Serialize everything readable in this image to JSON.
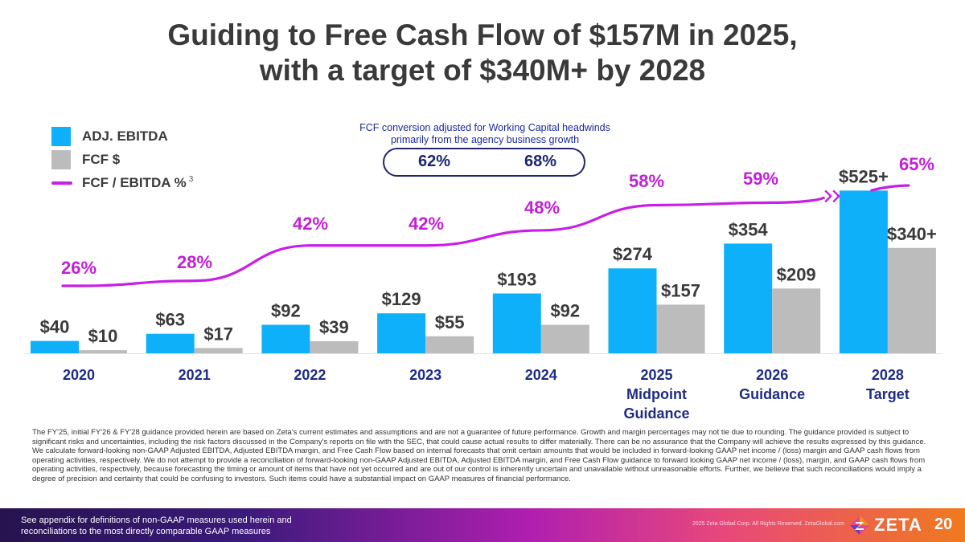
{
  "title": {
    "line1": "Guiding to Free Cash Flow of $157M in 2025,",
    "line2": "with a target of $340M+ by 2028"
  },
  "legend": {
    "ebitda": "ADJ. EBITDA",
    "fcf": "FCF $",
    "ratio": "FCF / EBITDA %",
    "ratio_superscript": "3"
  },
  "fcf_note": {
    "line1": "FCF conversion adjusted for Working Capital headwinds",
    "line2": "primarily from the agency business growth",
    "values": [
      "62%",
      "68%"
    ]
  },
  "colors": {
    "ebitda": "#0fb0fa",
    "fcf": "#bcbcbc",
    "ratio_line": "#c81ee8",
    "axis_label": "#1e2c86",
    "value_label": "#3a3a3a",
    "ratio_label": "#c21fd6"
  },
  "chart_data": {
    "type": "bar",
    "categories": [
      [
        "2020"
      ],
      [
        "2021"
      ],
      [
        "2022"
      ],
      [
        "2023"
      ],
      [
        "2024"
      ],
      [
        "2025",
        "Midpoint",
        "Guidance"
      ],
      [
        "2026",
        "Guidance"
      ],
      [
        "2028",
        "Target"
      ]
    ],
    "series": [
      {
        "name": "ADJ. EBITDA",
        "values": [
          40,
          63,
          92,
          129,
          193,
          274,
          354,
          525
        ],
        "labels": [
          "$40",
          "$63",
          "$92",
          "$129",
          "$193",
          "$274",
          "$354",
          "$525+"
        ]
      },
      {
        "name": "FCF $",
        "values": [
          10,
          17,
          39,
          55,
          92,
          157,
          209,
          340
        ],
        "labels": [
          "$10",
          "$17",
          "$39",
          "$55",
          "$92",
          "$157",
          "$209",
          "$340+"
        ]
      },
      {
        "name": "FCF / EBITDA %",
        "type": "line",
        "values": [
          26,
          28,
          42,
          42,
          48,
          58,
          59,
          65
        ],
        "labels": [
          "26%",
          "28%",
          "42%",
          "42%",
          "48%",
          "58%",
          "59%",
          "65%"
        ]
      }
    ],
    "axis_break_between": [
      "2026",
      "2028"
    ],
    "grid": false,
    "legend_position": "top-left"
  },
  "footnote": {
    "paragraph1": "The FY'25, initial FY'26 & FY'28 guidance provided herein are based on Zeta's current estimates and assumptions and are not a guarantee of future performance. Growth and margin percentages may not tie due to rounding. The guidance provided is subject to significant risks and uncertainties, including the risk factors discussed in the Company's reports on file with the SEC, that could cause actual results to differ materially. There can be no assurance that the Company will achieve the results expressed by this guidance.",
    "paragraph2": "We calculate forward-looking non-GAAP Adjusted EBITDA, Adjusted EBITDA margin, and Free Cash Flow based on internal forecasts that omit certain amounts that would be included in forward-looking GAAP net income / (loss) margin and GAAP cash flows from operating activities, respectively. We do not attempt to provide a reconciliation of forward-looking non-GAAP Adjusted EBITDA, Adjusted EBITDA margin, and Free Cash Flow guidance to forward looking GAAP net income / (loss), margin, and GAAP cash flows from operating activities, respectively, because forecasting the timing or amount of items that have not yet occurred and are out of our control is inherently uncertain and unavailable without unreasonable efforts. Further, we believe that such reconciliations would imply a degree of precision and certainty that could be confusing to investors. Such items could have a substantial impact on GAAP measures of financial performance."
  },
  "footer": {
    "note_line1": "See appendix for definitions of non-GAAP measures used herein and",
    "note_line2": "reconciliations to the most directly comparable GAAP measures",
    "copyright": "2025 Zeta Global Corp. All Rights Reserved. ZetaGlobal.com",
    "logo_text": "ZETA",
    "page_number": "20"
  }
}
